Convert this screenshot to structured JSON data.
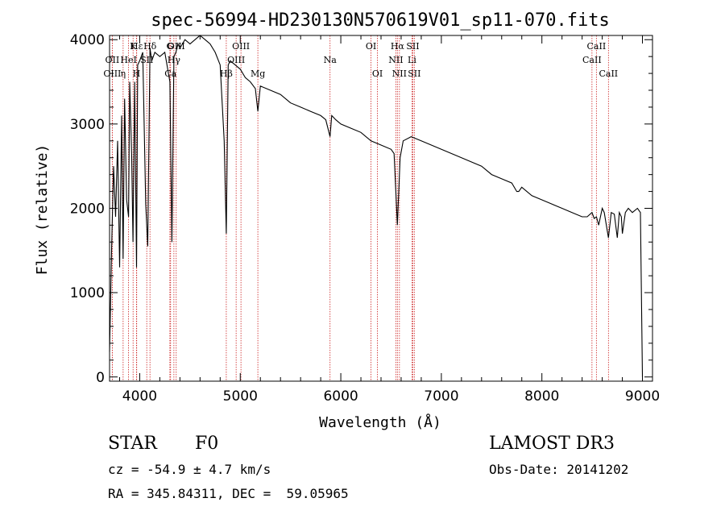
{
  "chart_data": {
    "type": "line",
    "title": "spec-56994-HD230130N570619V01_sp11-070.fits",
    "xlabel": "Wavelength (Å)",
    "ylabel": "Flux (relative)",
    "xlim": [
      3700,
      9100
    ],
    "ylim": [
      -50,
      4050
    ],
    "xticks": [
      4000,
      5000,
      6000,
      7000,
      8000,
      9000
    ],
    "yticks": [
      0,
      1000,
      2000,
      3000,
      4000
    ],
    "series": [
      {
        "name": "flux",
        "x": [
          3700,
          3720,
          3740,
          3760,
          3780,
          3800,
          3820,
          3835,
          3850,
          3870,
          3889,
          3900,
          3920,
          3933,
          3950,
          3968,
          3980,
          4000,
          4030,
          4060,
          4080,
          4102,
          4120,
          4150,
          4200,
          4250,
          4300,
          4320,
          4340,
          4360,
          4380,
          4400,
          4450,
          4500,
          4550,
          4600,
          4650,
          4700,
          4750,
          4800,
          4840,
          4861,
          4880,
          4900,
          4950,
          5000,
          5050,
          5100,
          5150,
          5175,
          5200,
          5300,
          5400,
          5500,
          5600,
          5700,
          5800,
          5850,
          5893,
          5910,
          5950,
          6000,
          6100,
          6200,
          6300,
          6400,
          6500,
          6530,
          6563,
          6590,
          6620,
          6700,
          6800,
          6900,
          7000,
          7100,
          7200,
          7300,
          7400,
          7500,
          7600,
          7700,
          7750,
          7770,
          7800,
          7900,
          8000,
          8100,
          8200,
          8300,
          8400,
          8450,
          8498,
          8520,
          8542,
          8565,
          8600,
          8620,
          8662,
          8690,
          8720,
          8750,
          8770,
          8790,
          8800,
          8830,
          8860,
          8900,
          8950,
          8980,
          9000
        ],
        "values": [
          300,
          1500,
          2500,
          1900,
          2800,
          1300,
          3100,
          1400,
          3300,
          2100,
          1900,
          3500,
          2600,
          1600,
          3500,
          1300,
          3700,
          3750,
          3850,
          2050,
          1550,
          3900,
          3750,
          3850,
          3800,
          3850,
          3500,
          1600,
          3800,
          3850,
          3950,
          3900,
          4000,
          3950,
          4000,
          4050,
          4000,
          3950,
          3850,
          3700,
          2800,
          1700,
          3700,
          3750,
          3700,
          3650,
          3550,
          3500,
          3420,
          3150,
          3450,
          3400,
          3350,
          3250,
          3200,
          3150,
          3100,
          3050,
          2850,
          3100,
          3050,
          3000,
          2950,
          2900,
          2800,
          2750,
          2700,
          2650,
          1800,
          2600,
          2800,
          2850,
          2800,
          2750,
          2700,
          2650,
          2600,
          2550,
          2500,
          2400,
          2350,
          2300,
          2200,
          2200,
          2250,
          2150,
          2100,
          2050,
          2000,
          1950,
          1900,
          1900,
          1950,
          1880,
          1900,
          1800,
          2000,
          1950,
          1650,
          1950,
          1930,
          1650,
          1950,
          1900,
          1700,
          1950,
          2000,
          1950,
          2000,
          1950,
          0
        ]
      }
    ],
    "lines": [
      {
        "name": "Hε",
        "wave": 3970,
        "row": 1
      },
      {
        "name": "K",
        "wave": 3934,
        "row": 1
      },
      {
        "name": "Hδ",
        "wave": 4102,
        "row": 1
      },
      {
        "name": "OII",
        "wave": 3727,
        "row": 2
      },
      {
        "name": "HeI",
        "wave": 3889,
        "row": 2
      },
      {
        "name": "SII",
        "wave": 4070,
        "row": 2
      },
      {
        "name": "OIII",
        "wave": 3727,
        "row": 3
      },
      {
        "name": "H",
        "wave": 3968,
        "row": 3
      },
      {
        "name": "η",
        "wave": 3835,
        "row": 3
      },
      {
        "name": "G",
        "wave": 4300,
        "row": 1
      },
      {
        "name": "OIII",
        "wave": 4363,
        "row": 1
      },
      {
        "name": "Hγ",
        "wave": 4340,
        "row": 2
      },
      {
        "name": "Ca",
        "wave": 4307,
        "row": 3
      },
      {
        "name": "OIII",
        "wave": 5007,
        "row": 1
      },
      {
        "name": "OIII",
        "wave": 4959,
        "row": 2
      },
      {
        "name": "Hβ",
        "wave": 4861,
        "row": 3
      },
      {
        "name": "Mg",
        "wave": 5175,
        "row": 3
      },
      {
        "name": "Na",
        "wave": 5893,
        "row": 2
      },
      {
        "name": "OI",
        "wave": 6300,
        "row": 1
      },
      {
        "name": "OI",
        "wave": 6364,
        "row": 3
      },
      {
        "name": "Hα",
        "wave": 6563,
        "row": 1
      },
      {
        "name": "SII",
        "wave": 6716,
        "row": 1
      },
      {
        "name": "NII",
        "wave": 6548,
        "row": 2
      },
      {
        "name": "Li",
        "wave": 6708,
        "row": 2
      },
      {
        "name": "NII",
        "wave": 6583,
        "row": 3
      },
      {
        "name": "SII",
        "wave": 6731,
        "row": 3
      },
      {
        "name": "CaII",
        "wave": 8542,
        "row": 1
      },
      {
        "name": "CaII",
        "wave": 8498,
        "row": 2
      },
      {
        "name": "CaII",
        "wave": 8662,
        "row": 3
      }
    ],
    "colors": {
      "spectrum": "#000000",
      "line_marker": "#cc2222",
      "axes": "#000000"
    },
    "grid": false
  },
  "footer": {
    "object_class": "STAR",
    "subclass": "F0",
    "survey": "LAMOST DR3",
    "redshift": "cz = -54.9 ± 4.7 km/s",
    "obs_date": "Obs-Date: 20141202",
    "coords": "RA = 345.84311, DEC =  59.05965"
  }
}
